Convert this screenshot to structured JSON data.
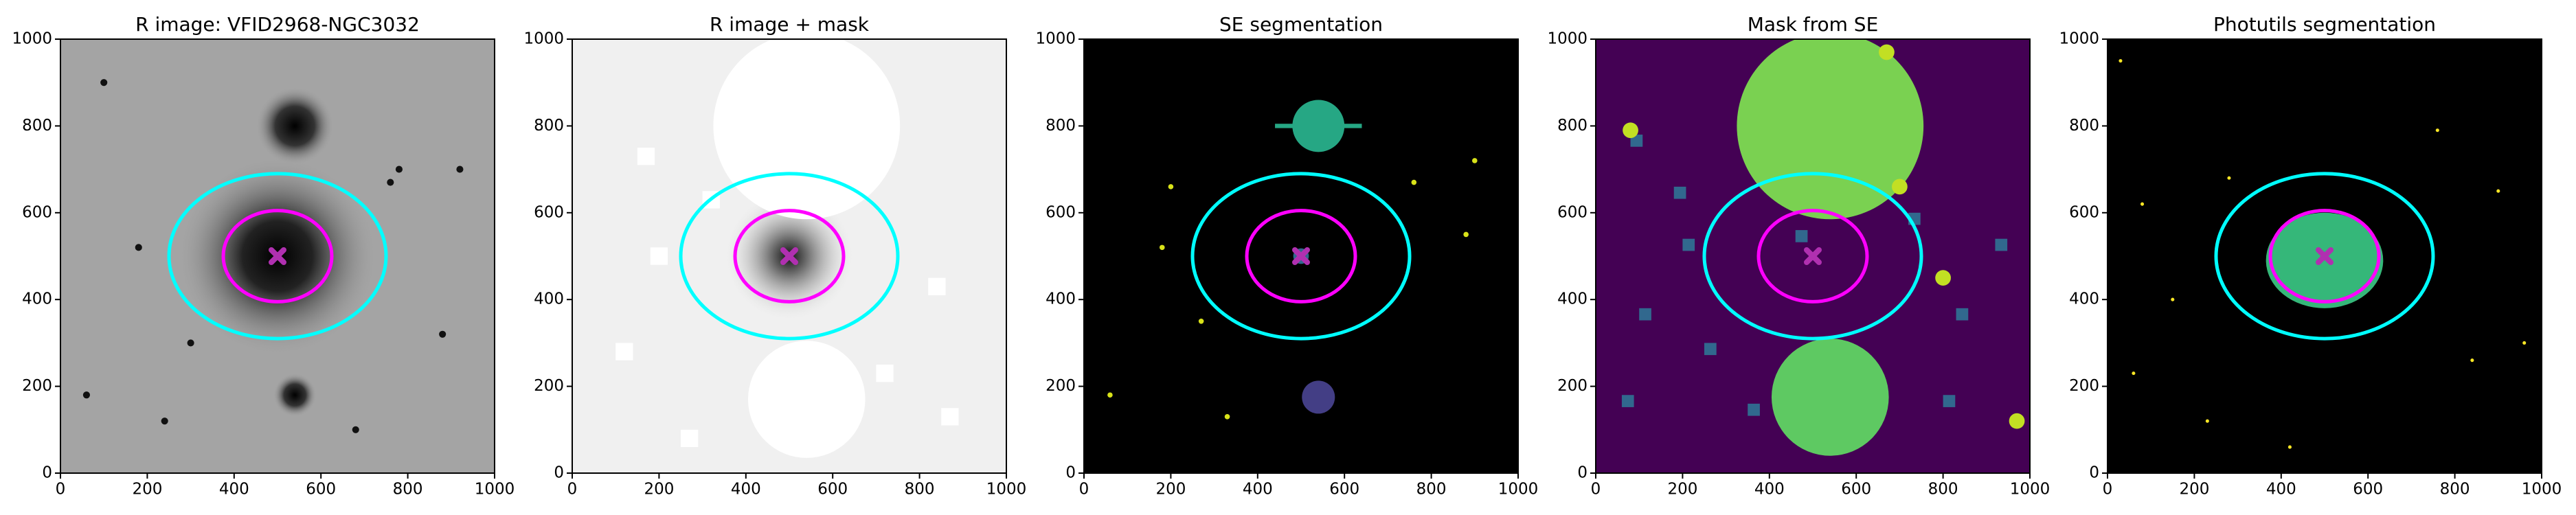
{
  "chart_data": [
    {
      "type": "image",
      "title": "R image: VFID2968-NGC3032",
      "background": "#a4a4a4",
      "xlim": [
        0,
        1000
      ],
      "ylim": [
        0,
        1000
      ],
      "xticks": [
        0,
        200,
        400,
        600,
        800,
        1000
      ],
      "yticks": [
        0,
        200,
        400,
        600,
        800,
        1000
      ],
      "ellipses": [
        {
          "color": "#00ffff",
          "center": [
            500,
            500
          ],
          "rx": 250,
          "ry": 190
        },
        {
          "color": "#ff00ff",
          "center": [
            500,
            500
          ],
          "rx": 125,
          "ry": 105
        }
      ],
      "marker": {
        "x": 500,
        "y": 500,
        "color": "#b030b0"
      }
    },
    {
      "type": "image",
      "title": "R image + mask",
      "background": "#f0f0f0",
      "xlim": [
        0,
        1000
      ],
      "ylim": [
        0,
        1000
      ],
      "xticks": [
        0,
        200,
        400,
        600,
        800,
        1000
      ],
      "yticks": [
        0,
        200,
        400,
        600,
        800,
        1000
      ],
      "ellipses": [
        {
          "color": "#00ffff",
          "center": [
            500,
            500
          ],
          "rx": 250,
          "ry": 190
        },
        {
          "color": "#ff00ff",
          "center": [
            500,
            500
          ],
          "rx": 125,
          "ry": 105
        }
      ],
      "marker": {
        "x": 500,
        "y": 500,
        "color": "#b030b0"
      }
    },
    {
      "type": "image",
      "title": "SE segmentation",
      "background": "#000000",
      "xlim": [
        0,
        1000
      ],
      "ylim": [
        0,
        1000
      ],
      "xticks": [
        0,
        200,
        400,
        600,
        800,
        1000
      ],
      "yticks": [
        0,
        200,
        400,
        600,
        800,
        1000
      ],
      "ellipses": [
        {
          "color": "#00ffff",
          "center": [
            500,
            500
          ],
          "rx": 250,
          "ry": 190
        },
        {
          "color": "#ff00ff",
          "center": [
            500,
            500
          ],
          "rx": 125,
          "ry": 105
        }
      ],
      "marker": {
        "x": 500,
        "y": 500,
        "color": "#b030b0"
      }
    },
    {
      "type": "image",
      "title": "Mask from SE",
      "background": "#440154",
      "xlim": [
        0,
        1000
      ],
      "ylim": [
        0,
        1000
      ],
      "xticks": [
        0,
        200,
        400,
        600,
        800,
        1000
      ],
      "yticks": [
        0,
        200,
        400,
        600,
        800,
        1000
      ],
      "ellipses": [
        {
          "color": "#00ffff",
          "center": [
            500,
            500
          ],
          "rx": 250,
          "ry": 190
        },
        {
          "color": "#ff00ff",
          "center": [
            500,
            500
          ],
          "rx": 125,
          "ry": 105
        }
      ],
      "marker": {
        "x": 500,
        "y": 500,
        "color": "#b030b0"
      }
    },
    {
      "type": "image",
      "title": "Photutils segmentation",
      "background": "#000000",
      "xlim": [
        0,
        1000
      ],
      "ylim": [
        0,
        1000
      ],
      "xticks": [
        0,
        200,
        400,
        600,
        800,
        1000
      ],
      "yticks": [
        0,
        200,
        400,
        600,
        800,
        1000
      ],
      "ellipses": [
        {
          "color": "#00ffff",
          "center": [
            500,
            500
          ],
          "rx": 250,
          "ry": 190
        },
        {
          "color": "#ff00ff",
          "center": [
            500,
            500
          ],
          "rx": 125,
          "ry": 105
        }
      ],
      "marker": {
        "x": 500,
        "y": 500,
        "color": "#b030b0"
      }
    }
  ]
}
